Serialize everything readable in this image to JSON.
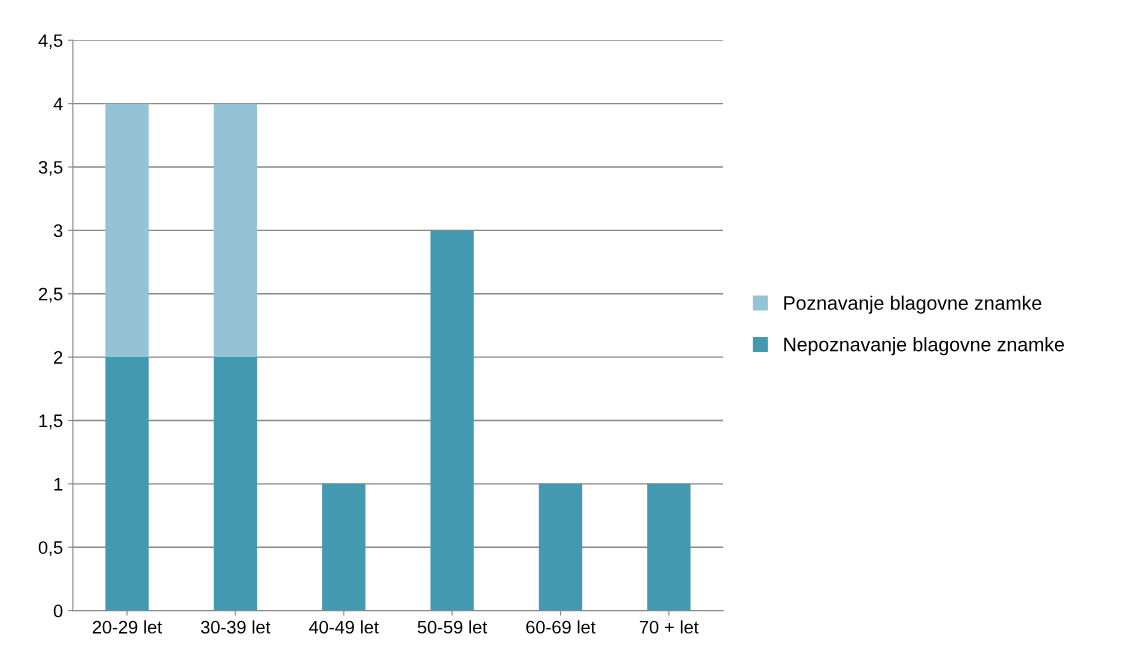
{
  "chart_data": {
    "type": "bar",
    "stacked": true,
    "categories": [
      "20-29 let",
      "30-39 let",
      "40-49 let",
      "50-59 let",
      "60-69 let",
      "70 + let"
    ],
    "series": [
      {
        "name": "Nepoznavanje blagovne znamke",
        "color": "#4399b0",
        "values": [
          2,
          2,
          1,
          3,
          1,
          1
        ]
      },
      {
        "name": "Poznavanje blagovne znamke",
        "color": "#93c3d4",
        "values": [
          2,
          2,
          0,
          0,
          0,
          0
        ]
      }
    ],
    "ylim": [
      0,
      4.5
    ],
    "yticks": [
      0,
      {
        "value": 0.5,
        "label": "0,5"
      },
      1,
      {
        "value": 1.5,
        "label": "1,5"
      },
      2,
      {
        "value": 2.5,
        "label": "2,5"
      },
      3,
      {
        "value": 3.5,
        "label": "3,5"
      },
      4,
      {
        "value": 4.5,
        "label": "4,5"
      }
    ],
    "grid": "y",
    "legend": "right"
  }
}
